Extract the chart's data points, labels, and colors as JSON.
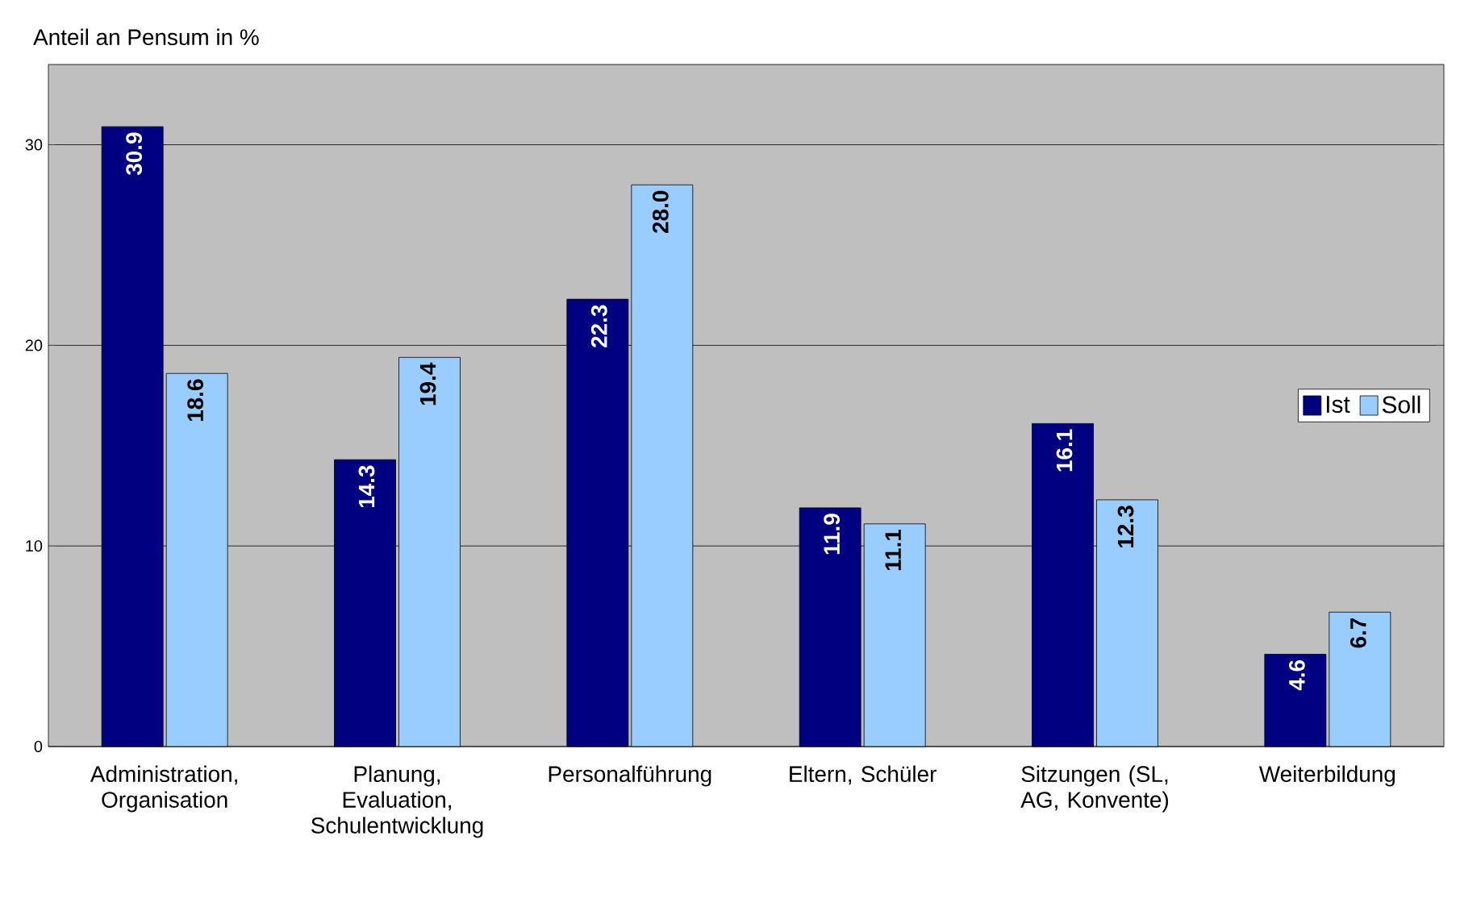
{
  "chart_data": {
    "type": "bar",
    "ylabel": "Anteil an Pensum in %",
    "categories": [
      "Administration, Organisation",
      "Planung, Evaluation, Schulentwicklung",
      "Personalführung",
      "Eltern, Schüler",
      "Sitzungen (SL, AG, Konvente)",
      "Weiterbildung"
    ],
    "series": [
      {
        "name": "Ist",
        "color": "#000080",
        "values": [
          30.9,
          14.3,
          22.3,
          11.9,
          16.1,
          4.6
        ],
        "value_labels": [
          "30.9",
          "14.3",
          "22.3",
          "11.9",
          "16.1",
          "4.6"
        ]
      },
      {
        "name": "Soll",
        "color": "#99ccff",
        "values": [
          18.6,
          19.4,
          28.0,
          11.1,
          12.3,
          6.7
        ],
        "value_labels": [
          "18.6",
          "19.4",
          "28.0",
          "11.1",
          "12.3",
          "6.7"
        ]
      }
    ],
    "ylim": [
      0,
      34
    ],
    "yticks": [
      0,
      10,
      20,
      30
    ],
    "grid": "y",
    "legend": "right"
  }
}
